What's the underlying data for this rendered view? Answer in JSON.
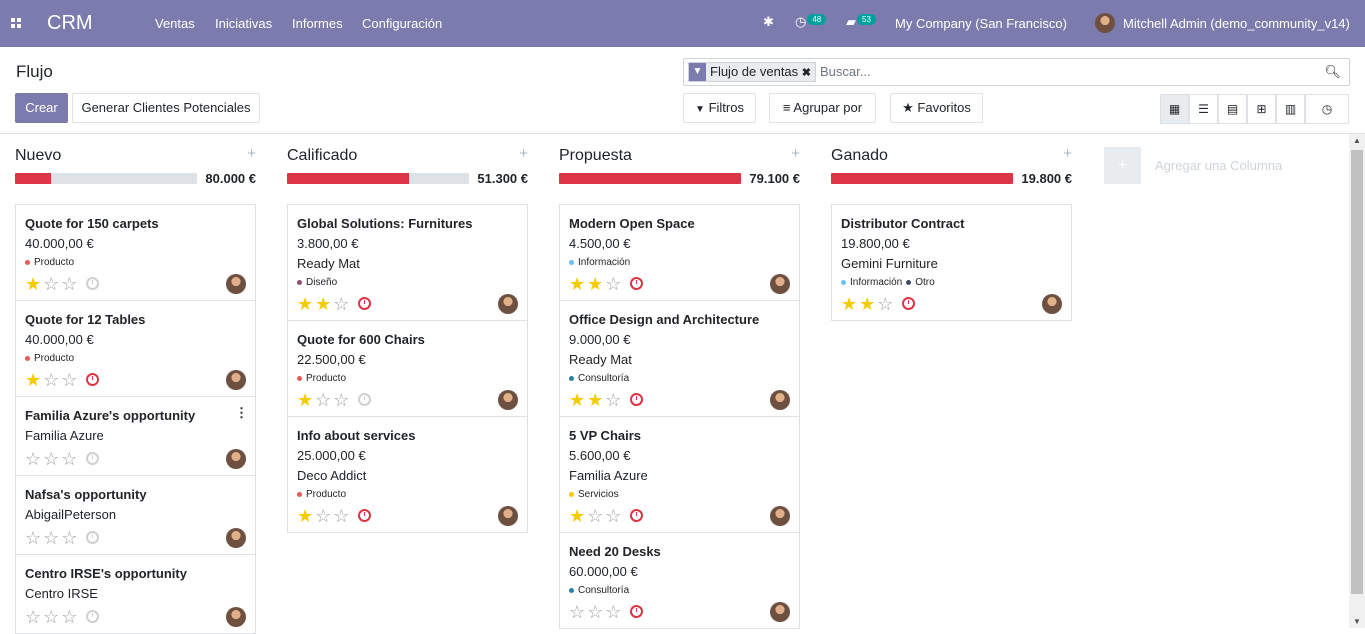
{
  "nav": {
    "brand": "CRM",
    "menu": [
      "Ventas",
      "Iniciativas",
      "Informes",
      "Configuración"
    ],
    "activities_count": "48",
    "messages_count": "53",
    "company": "My Company (San Francisco)",
    "user": "Mitchell Admin (demo_community_v14)"
  },
  "control": {
    "breadcrumb": "Flujo",
    "create_label": "Crear",
    "generate_leads_label": "Generar Clientes Potenciales",
    "search_facet": "Flujo de ventas",
    "search_placeholder": "Buscar...",
    "filters_label": "Filtros",
    "group_by_label": "Agrupar por",
    "favorites_label": "Favoritos",
    "views": [
      "kanban",
      "list",
      "calendar",
      "pivot",
      "graph",
      "activity"
    ]
  },
  "columns": [
    {
      "title": "Nuevo",
      "total": "80.000 €",
      "progress": 0.2,
      "cards": [
        {
          "name": "Quote for 150 carpets",
          "lines": [
            "40.000,00 €"
          ],
          "tags": [
            {
              "label": "Producto",
              "color": "#e85a5a"
            }
          ],
          "stars": 1,
          "activity": "none"
        },
        {
          "name": "Quote for 12 Tables",
          "lines": [
            "40.000,00 €"
          ],
          "tags": [
            {
              "label": "Producto",
              "color": "#e85a5a"
            }
          ],
          "stars": 1,
          "activity": "overdue"
        },
        {
          "name": "Familia Azure's opportunity",
          "lines": [
            "Familia Azure"
          ],
          "tags": [],
          "stars": 0,
          "activity": "none",
          "menu": true
        },
        {
          "name": "Nafsa's opportunity",
          "lines": [
            "AbigailPeterson"
          ],
          "tags": [],
          "stars": 0,
          "activity": "none"
        },
        {
          "name": "Centro IRSE's opportunity",
          "lines": [
            "Centro IRSE"
          ],
          "tags": [],
          "stars": 0,
          "activity": "none"
        }
      ]
    },
    {
      "title": "Calificado",
      "total": "51.300 €",
      "progress": 0.67,
      "cards": [
        {
          "name": "Global Solutions: Furnitures",
          "lines": [
            "3.800,00 €",
            "Ready Mat"
          ],
          "tags": [
            {
              "label": "Diseño",
              "color": "#8e4f6e"
            }
          ],
          "stars": 2,
          "activity": "overdue"
        },
        {
          "name": "Quote for 600 Chairs",
          "lines": [
            "22.500,00 €"
          ],
          "tags": [
            {
              "label": "Producto",
              "color": "#e85a5a"
            }
          ],
          "stars": 1,
          "activity": "none"
        },
        {
          "name": "Info about services",
          "lines": [
            "25.000,00 €",
            "Deco Addict"
          ],
          "tags": [
            {
              "label": "Producto",
              "color": "#e85a5a"
            }
          ],
          "stars": 1,
          "activity": "overdue"
        }
      ]
    },
    {
      "title": "Propuesta",
      "total": "79.100 €",
      "progress": 1.0,
      "cards": [
        {
          "name": "Modern Open Space",
          "lines": [
            "4.500,00 €"
          ],
          "tags": [
            {
              "label": "Información",
              "color": "#6cc1ed"
            }
          ],
          "stars": 2,
          "activity": "overdue"
        },
        {
          "name": "Office Design and Architecture",
          "lines": [
            "9.000,00 €",
            "Ready Mat"
          ],
          "tags": [
            {
              "label": "Consultoría",
              "color": "#2c7fa0"
            }
          ],
          "stars": 2,
          "activity": "overdue"
        },
        {
          "name": "5 VP Chairs",
          "lines": [
            "5.600,00 €",
            "Familia Azure"
          ],
          "tags": [
            {
              "label": "Servicios",
              "color": "#f5c900"
            }
          ],
          "stars": 1,
          "activity": "overdue"
        },
        {
          "name": "Need 20 Desks",
          "lines": [
            "60.000,00 €"
          ],
          "tags": [
            {
              "label": "Consultoría",
              "color": "#2c7fa0"
            }
          ],
          "stars": 0,
          "activity": "overdue"
        }
      ]
    },
    {
      "title": "Ganado",
      "total": "19.800 €",
      "progress": 1.0,
      "cards": [
        {
          "name": "Distributor Contract",
          "lines": [
            "19.800,00 €",
            "Gemini Furniture"
          ],
          "tags": [
            {
              "label": "Información",
              "color": "#6cc1ed"
            },
            {
              "label": "Otro",
              "color": "#3c4a6b"
            }
          ],
          "stars": 2,
          "activity": "overdue"
        }
      ]
    }
  ],
  "add_column_label": "Agregar una Columna",
  "colors": {
    "brand": "#7c7bad",
    "progress": "#dc3545",
    "star": "#f3cc00"
  }
}
